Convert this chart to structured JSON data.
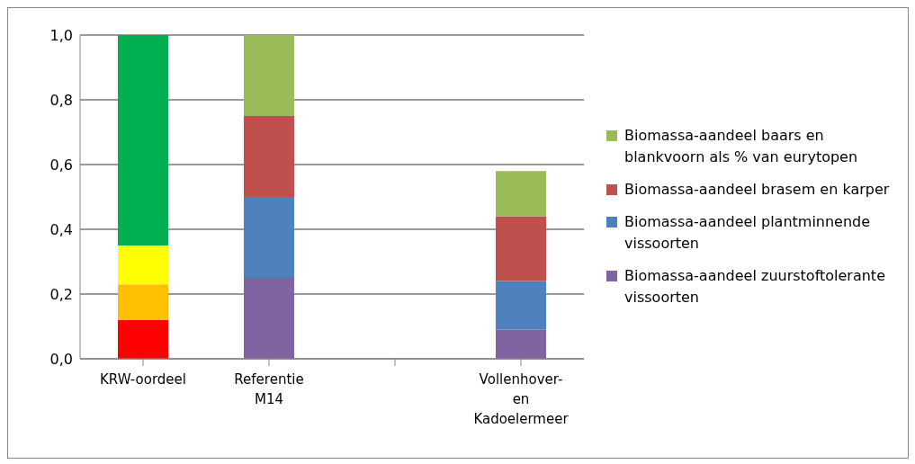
{
  "chart_data": {
    "type": "bar",
    "stacked": true,
    "categories": [
      "KRW-oordeel",
      "Referentie M14",
      null,
      "Vollenhover- en Kadoelermeer"
    ],
    "series": [
      {
        "color": "#ff0000",
        "values": [
          0.12,
          null,
          null,
          null
        ]
      },
      {
        "color": "#ffc000",
        "values": [
          0.11,
          null,
          null,
          null
        ]
      },
      {
        "color": "#ffff00",
        "values": [
          0.12,
          null,
          null,
          null
        ]
      },
      {
        "color": "#00b050",
        "values": [
          0.65,
          null,
          null,
          null
        ]
      },
      {
        "name": "Biomassa-aandeel zuurstoftolerante vissoorten",
        "color": "#8064a2",
        "values": [
          null,
          0.25,
          null,
          0.09
        ]
      },
      {
        "name": "Biomassa-aandeel plantminnende vissoorten",
        "color": "#4f81bd",
        "values": [
          null,
          0.25,
          null,
          0.15
        ]
      },
      {
        "name": "Biomassa-aandeel brasem en karper",
        "color": "#c0504d",
        "values": [
          null,
          0.25,
          null,
          0.2
        ]
      },
      {
        "name": "Biomassa-aandeel baars en blankvoorn als % van eurytopen",
        "color": "#9bbb59",
        "values": [
          null,
          0.25,
          null,
          0.14
        ]
      }
    ],
    "ylim": [
      0,
      1
    ],
    "yticks": [
      {
        "value": 0,
        "label": "0,0"
      },
      {
        "value": 0.2,
        "label": "0,2"
      },
      {
        "value": 0.4,
        "label": "0,4"
      },
      {
        "value": 0.6,
        "label": "0,6"
      },
      {
        "value": 0.8,
        "label": "0,8"
      },
      {
        "value": 1,
        "label": "1,0"
      }
    ],
    "grid": "y",
    "legend": "right"
  }
}
